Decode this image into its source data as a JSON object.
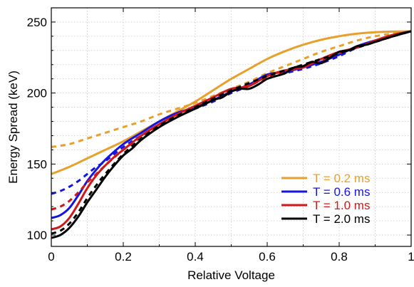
{
  "chart_data": {
    "type": "line",
    "xlabel": "Relative Voltage",
    "ylabel": "Energy Spread (keV)",
    "xlim": [
      0,
      1
    ],
    "ylim": [
      92,
      260
    ],
    "xticks": [
      0,
      0.2,
      0.4,
      0.6,
      0.8,
      1
    ],
    "xtick_labels": [
      "0",
      "0.2",
      "0.4",
      "0.6",
      "0.8",
      "1"
    ],
    "yticks": [
      100,
      150,
      200,
      250
    ],
    "ytick_labels": [
      "100",
      "150",
      "200",
      "250"
    ],
    "grid": true,
    "legend_position": "bottom-right",
    "series": [
      {
        "name": "T = 0.2 ms",
        "color": "#E8A02C",
        "solid": {
          "x": [
            0,
            0.05,
            0.1,
            0.15,
            0.2,
            0.25,
            0.3,
            0.35,
            0.4,
            0.45,
            0.5,
            0.55,
            0.6,
            0.65,
            0.7,
            0.75,
            0.8,
            0.85,
            0.9,
            0.95,
            1.0
          ],
          "y": [
            143,
            148,
            154,
            160,
            166,
            173,
            180,
            187,
            194,
            202,
            210,
            217,
            224,
            229.5,
            234,
            237.5,
            240,
            241.8,
            242.8,
            243.3,
            243.5
          ]
        },
        "dashed": {
          "x": [
            0,
            0.05,
            0.1,
            0.15,
            0.2,
            0.25,
            0.3,
            0.35,
            0.4,
            0.45,
            0.5,
            0.55,
            0.6,
            0.65,
            0.7,
            0.75,
            0.8,
            0.85,
            0.9,
            0.95,
            1.0
          ],
          "y": [
            162,
            164,
            168,
            172,
            176,
            180,
            185,
            189,
            193,
            198,
            203,
            208,
            214,
            219,
            224,
            229,
            233,
            237,
            240,
            242,
            243.5
          ]
        }
      },
      {
        "name": "T = 0.6 ms",
        "color": "#1515E0",
        "solid": {
          "x": [
            0,
            0.025,
            0.05,
            0.075,
            0.1,
            0.125,
            0.15,
            0.2,
            0.25,
            0.3,
            0.35,
            0.4,
            0.45,
            0.5,
            0.55,
            0.6,
            0.65,
            0.7,
            0.75,
            0.8,
            0.85,
            0.9,
            0.95,
            1.0
          ],
          "y": [
            112,
            114,
            119,
            128,
            138,
            146,
            153,
            164,
            172,
            180,
            186,
            190,
            195,
            201,
            206,
            213,
            215,
            218,
            222,
            227,
            233,
            237,
            240,
            243.5
          ]
        },
        "dashed": {
          "x": [
            0,
            0.025,
            0.05,
            0.075,
            0.1,
            0.125,
            0.15,
            0.2,
            0.25,
            0.3,
            0.35,
            0.4,
            0.45,
            0.5,
            0.55,
            0.6,
            0.65,
            0.7,
            0.75,
            0.8,
            0.85,
            0.9,
            0.95,
            1.0
          ],
          "y": [
            129,
            131,
            134,
            138,
            143,
            148,
            152,
            162,
            170,
            178,
            184,
            189,
            194,
            200,
            205,
            211,
            214,
            217,
            221,
            226,
            232,
            236,
            240,
            243.5
          ]
        }
      },
      {
        "name": "T = 1.0 ms",
        "color": "#D01818",
        "solid": {
          "x": [
            0,
            0.025,
            0.05,
            0.075,
            0.1,
            0.125,
            0.15,
            0.175,
            0.2,
            0.25,
            0.3,
            0.35,
            0.4,
            0.45,
            0.5,
            0.55,
            0.6,
            0.65,
            0.7,
            0.75,
            0.8,
            0.85,
            0.9,
            0.95,
            1.0
          ],
          "y": [
            104,
            106,
            112,
            122,
            133,
            142,
            149,
            155,
            160,
            170,
            178,
            185,
            191,
            197,
            203,
            205,
            212,
            216,
            218,
            224,
            229,
            232,
            237,
            241,
            243.5
          ]
        },
        "dashed": {
          "x": [
            0,
            0.025,
            0.05,
            0.075,
            0.1,
            0.125,
            0.15,
            0.2,
            0.25,
            0.3,
            0.35,
            0.4,
            0.45,
            0.5,
            0.55,
            0.6,
            0.65,
            0.7,
            0.75,
            0.8,
            0.85,
            0.9,
            0.95,
            1.0
          ],
          "y": [
            118,
            120,
            124,
            130,
            137,
            143,
            149,
            160,
            169,
            177,
            184,
            190,
            196,
            202,
            206,
            211,
            215,
            219,
            223,
            228,
            232,
            236,
            240,
            243.5
          ]
        }
      },
      {
        "name": "T = 2.0 ms",
        "color": "#000000",
        "solid": {
          "x": [
            0,
            0.025,
            0.05,
            0.075,
            0.1,
            0.125,
            0.15,
            0.175,
            0.2,
            0.225,
            0.25,
            0.3,
            0.35,
            0.4,
            0.45,
            0.475,
            0.5,
            0.525,
            0.55,
            0.575,
            0.6,
            0.625,
            0.65,
            0.675,
            0.7,
            0.725,
            0.75,
            0.775,
            0.8,
            0.825,
            0.85,
            0.875,
            0.9,
            0.925,
            0.95,
            0.975,
            1.0
          ],
          "y": [
            98,
            100,
            105,
            113,
            123,
            132,
            141,
            149,
            156,
            161,
            167,
            176,
            183,
            189,
            195,
            197,
            201,
            203,
            203,
            206,
            210,
            212,
            214,
            218,
            219,
            222,
            221,
            225,
            229,
            230,
            233,
            234,
            236,
            238,
            240,
            242,
            243.5
          ]
        },
        "dashed": {
          "x": [
            0,
            0.025,
            0.05,
            0.075,
            0.1,
            0.125,
            0.15,
            0.2,
            0.25,
            0.3,
            0.35,
            0.4,
            0.45,
            0.5,
            0.55,
            0.6,
            0.65,
            0.7,
            0.75,
            0.8,
            0.85,
            0.9,
            0.95,
            1.0
          ],
          "y": [
            101,
            103,
            108,
            116,
            126,
            135,
            143,
            157,
            168,
            177,
            184,
            190,
            196,
            202,
            207,
            212,
            216,
            220,
            224,
            228,
            232,
            236,
            240,
            243.5
          ]
        }
      }
    ]
  }
}
